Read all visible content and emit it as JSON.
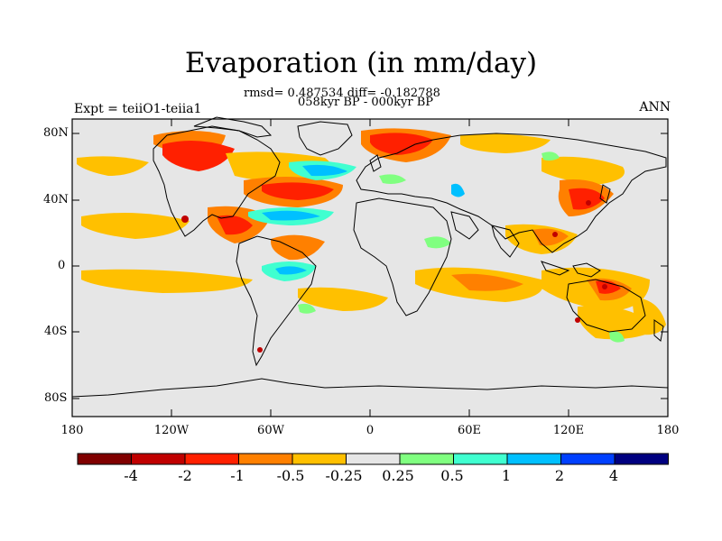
{
  "title": "Evaporation (in mm/day)",
  "subtitle_line1": "rmsd= 0.487534 diff= -0.182788",
  "subtitle_line2": "058kyr BP - 000kyr BP",
  "left_label": "Expt = teiiO1-teiia1",
  "right_label": "ANN",
  "lat_labels": [
    "80N",
    "40N",
    "0",
    "40S",
    "80S"
  ],
  "lon_labels": [
    "180",
    "120W",
    "60W",
    "0",
    "60E",
    "120E",
    "180"
  ],
  "colorbar": {
    "labels": [
      "-4",
      "-2",
      "-1",
      "-0.5",
      "-0.25",
      "0.25",
      "0.5",
      "1",
      "2",
      "4"
    ],
    "colors": [
      "#800000",
      "#c00000",
      "#ff2000",
      "#ff8000",
      "#ffc000",
      "#e6e6e6",
      "#80ff80",
      "#40ffd0",
      "#00c0ff",
      "#0040ff",
      "#000080"
    ]
  }
}
